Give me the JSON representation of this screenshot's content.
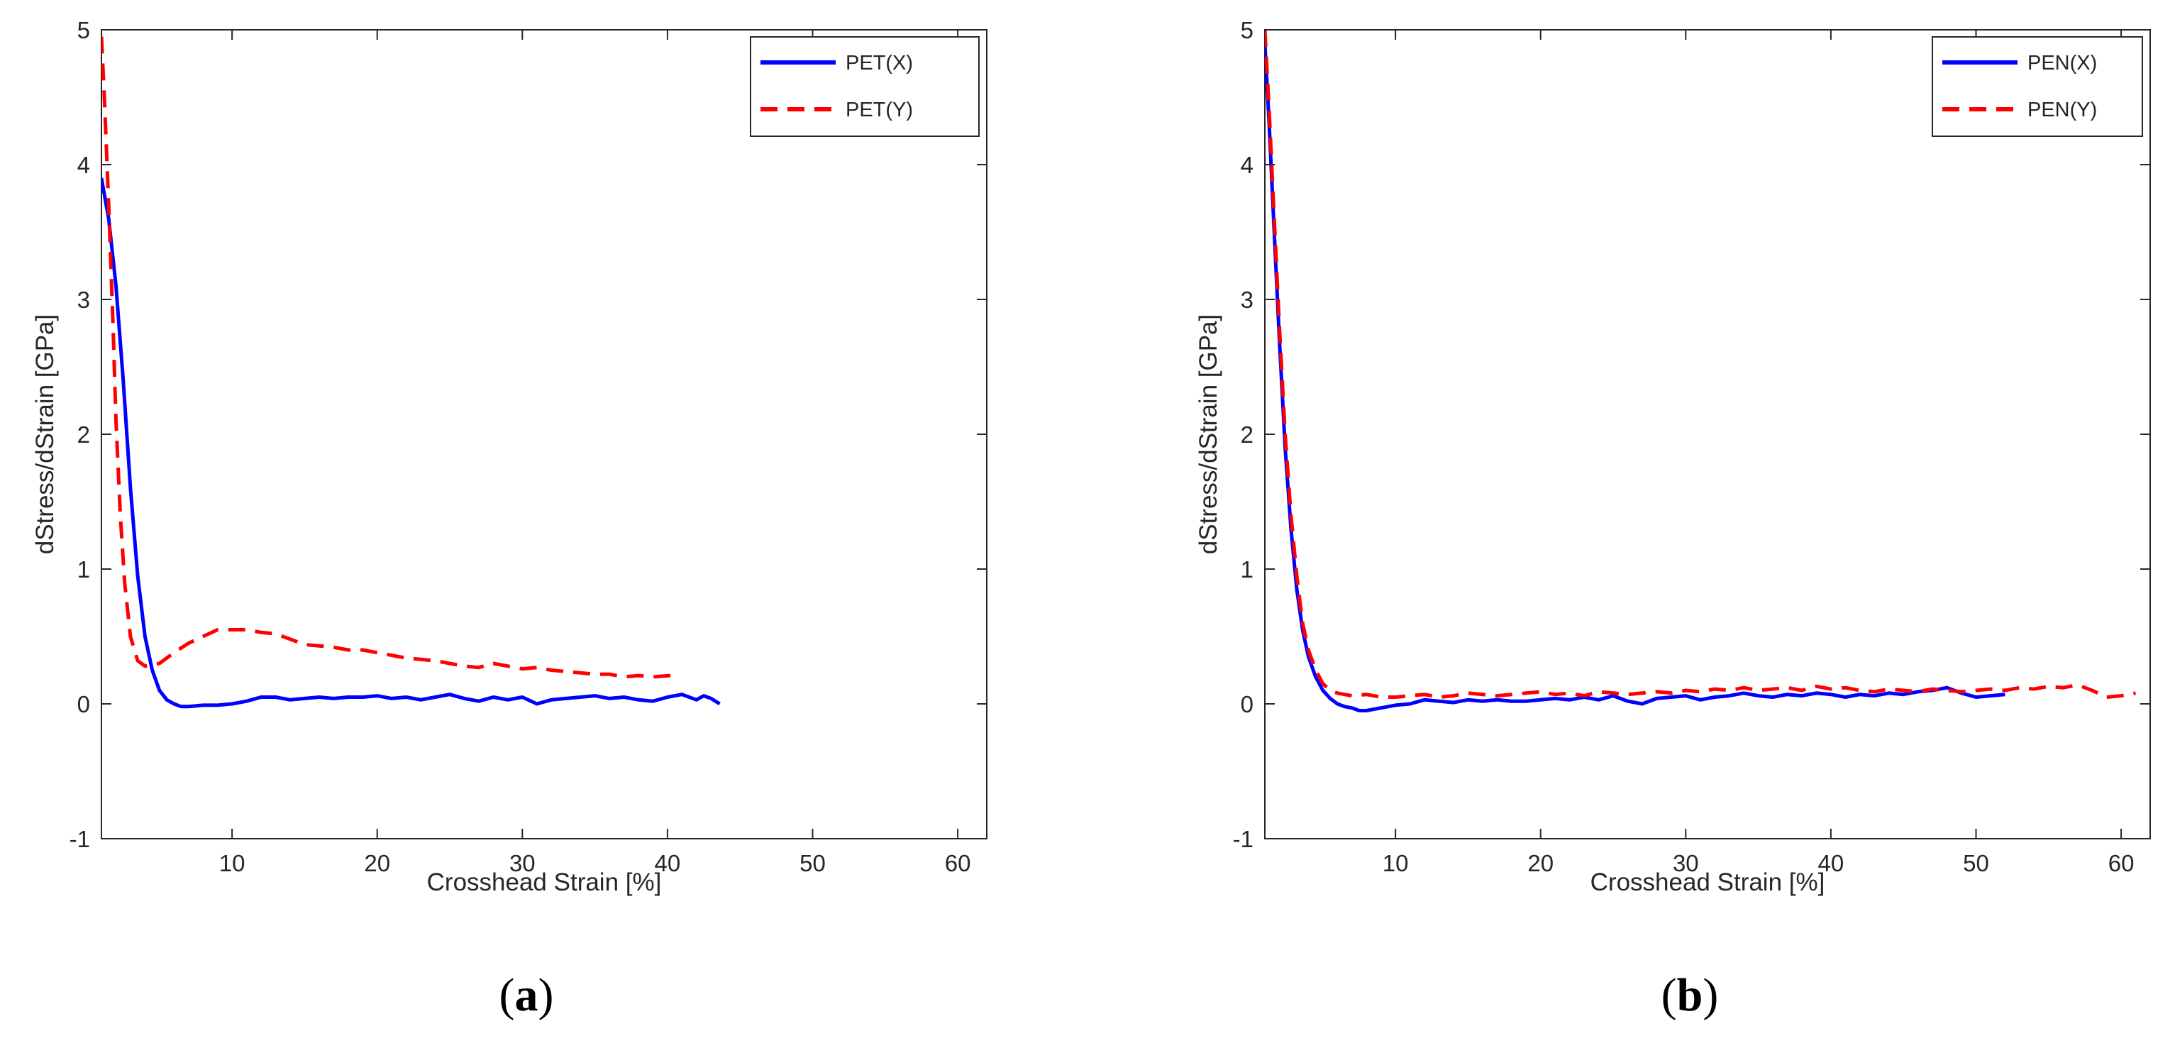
{
  "chart_data": [
    {
      "type": "line",
      "panel_label": {
        "open": "(",
        "letter": "a",
        "close": ")"
      },
      "title": "",
      "xlabel": "Crosshead Strain [%]",
      "ylabel": "dStress/dStrain [GPa]",
      "xlim": [
        1,
        62
      ],
      "ylim": [
        -1,
        5
      ],
      "xticks": [
        10,
        20,
        30,
        40,
        50,
        60
      ],
      "yticks": [
        -1,
        0,
        1,
        2,
        3,
        4,
        5
      ],
      "grid": false,
      "legend_position": "top-right",
      "series": [
        {
          "name": "PET(X)",
          "color": "#0000ff",
          "style": "solid",
          "x": [
            1.0,
            1.5,
            2.0,
            2.5,
            3.0,
            3.5,
            4.0,
            4.5,
            5.0,
            5.5,
            6.0,
            6.5,
            7.0,
            8.0,
            9.0,
            10.0,
            11.0,
            12.0,
            13.0,
            14.0,
            15.0,
            16.0,
            17.0,
            18.0,
            19.0,
            20.0,
            21.0,
            22.0,
            23.0,
            24.0,
            25.0,
            26.0,
            27.0,
            28.0,
            29.0,
            30.0,
            31.0,
            32.0,
            33.0,
            34.0,
            35.0,
            36.0,
            37.0,
            38.0,
            39.0,
            40.0,
            41.0,
            42.0,
            42.5,
            43.0,
            43.6
          ],
          "y": [
            3.9,
            3.6,
            3.1,
            2.4,
            1.6,
            0.95,
            0.5,
            0.25,
            0.1,
            0.03,
            0.0,
            -0.02,
            -0.02,
            -0.01,
            -0.01,
            0.0,
            0.02,
            0.05,
            0.05,
            0.03,
            0.04,
            0.05,
            0.04,
            0.05,
            0.05,
            0.06,
            0.04,
            0.05,
            0.03,
            0.05,
            0.07,
            0.04,
            0.02,
            0.05,
            0.03,
            0.05,
            0.0,
            0.03,
            0.04,
            0.05,
            0.06,
            0.04,
            0.05,
            0.03,
            0.02,
            0.05,
            0.07,
            0.03,
            0.06,
            0.04,
            0.0
          ]
        },
        {
          "name": "PET(Y)",
          "color": "#ff0000",
          "style": "dashed",
          "x": [
            1.0,
            1.2,
            1.5,
            1.8,
            2.0,
            2.3,
            2.6,
            3.0,
            3.5,
            4.0,
            5.0,
            6.0,
            7.0,
            8.0,
            9.0,
            10.0,
            11.0,
            12.0,
            13.0,
            14.0,
            15.0,
            16.0,
            17.0,
            18.0,
            19.0,
            20.0,
            21.0,
            22.0,
            23.0,
            24.0,
            25.0,
            26.0,
            27.0,
            28.0,
            29.0,
            30.0,
            31.0,
            32.0,
            33.0,
            34.0,
            35.0,
            36.0,
            37.0,
            38.0,
            39.0,
            40.2
          ],
          "y": [
            4.95,
            4.5,
            3.7,
            2.8,
            2.1,
            1.4,
            0.9,
            0.5,
            0.32,
            0.28,
            0.3,
            0.38,
            0.45,
            0.5,
            0.55,
            0.55,
            0.55,
            0.53,
            0.52,
            0.48,
            0.44,
            0.43,
            0.42,
            0.4,
            0.4,
            0.38,
            0.36,
            0.34,
            0.33,
            0.32,
            0.3,
            0.28,
            0.27,
            0.3,
            0.28,
            0.26,
            0.27,
            0.25,
            0.24,
            0.23,
            0.22,
            0.22,
            0.2,
            0.21,
            0.2,
            0.21
          ]
        }
      ]
    },
    {
      "type": "line",
      "panel_label": {
        "open": "(",
        "letter": "b",
        "close": ")"
      },
      "title": "",
      "xlabel": "Crosshead Strain [%]",
      "ylabel": "dStress/dStrain [GPa]",
      "xlim": [
        1,
        62
      ],
      "ylim": [
        -1,
        5
      ],
      "xticks": [
        10,
        20,
        30,
        40,
        50,
        60
      ],
      "yticks": [
        -1,
        0,
        1,
        2,
        3,
        4,
        5
      ],
      "grid": false,
      "legend_position": "top-right",
      "series": [
        {
          "name": "PEN(X)",
          "color": "#0000ff",
          "style": "solid",
          "x": [
            1.0,
            1.3,
            1.6,
            2.0,
            2.4,
            2.8,
            3.2,
            3.6,
            4.0,
            4.5,
            5.0,
            5.5,
            6.0,
            6.5,
            7.0,
            7.5,
            8.0,
            9.0,
            10.0,
            11.0,
            12.0,
            13.0,
            14.0,
            15.0,
            16.0,
            17.0,
            18.0,
            19.0,
            20.0,
            21.0,
            22.0,
            23.0,
            24.0,
            25.0,
            26.0,
            27.0,
            28.0,
            29.0,
            30.0,
            31.0,
            32.0,
            33.0,
            34.0,
            35.0,
            36.0,
            37.0,
            38.0,
            39.0,
            40.0,
            41.0,
            42.0,
            43.0,
            44.0,
            45.0,
            46.0,
            47.0,
            48.0,
            49.0,
            50.0,
            51.0,
            52.0
          ],
          "y": [
            4.9,
            4.3,
            3.6,
            2.7,
            1.9,
            1.3,
            0.85,
            0.55,
            0.35,
            0.2,
            0.1,
            0.04,
            0.0,
            -0.02,
            -0.03,
            -0.05,
            -0.05,
            -0.03,
            -0.01,
            0.0,
            0.03,
            0.02,
            0.01,
            0.03,
            0.02,
            0.03,
            0.02,
            0.02,
            0.03,
            0.04,
            0.03,
            0.05,
            0.03,
            0.06,
            0.02,
            0.0,
            0.04,
            0.05,
            0.06,
            0.03,
            0.05,
            0.06,
            0.08,
            0.06,
            0.05,
            0.07,
            0.06,
            0.08,
            0.07,
            0.05,
            0.07,
            0.06,
            0.08,
            0.07,
            0.09,
            0.1,
            0.12,
            0.08,
            0.05,
            0.06,
            0.07
          ]
        },
        {
          "name": "PEN(Y)",
          "color": "#ff0000",
          "style": "dashed",
          "x": [
            1.0,
            1.3,
            1.6,
            2.0,
            2.4,
            2.8,
            3.2,
            3.6,
            4.0,
            4.5,
            5.0,
            5.5,
            6.0,
            7.0,
            8.0,
            9.0,
            10.0,
            11.0,
            12.0,
            13.0,
            14.0,
            15.0,
            16.0,
            17.0,
            18.0,
            19.0,
            20.0,
            21.0,
            22.0,
            23.0,
            24.0,
            25.0,
            26.0,
            27.0,
            28.0,
            29.0,
            30.0,
            31.0,
            32.0,
            33.0,
            34.0,
            35.0,
            36.0,
            37.0,
            38.0,
            39.0,
            40.0,
            41.0,
            42.0,
            43.0,
            44.0,
            45.0,
            46.0,
            47.0,
            48.0,
            49.0,
            50.0,
            51.0,
            52.0,
            53.0,
            54.0,
            55.0,
            56.0,
            57.0,
            58.0,
            59.0,
            60.0,
            61.0
          ],
          "y": [
            5.0,
            4.4,
            3.7,
            2.8,
            2.0,
            1.4,
            0.95,
            0.6,
            0.4,
            0.25,
            0.15,
            0.1,
            0.08,
            0.06,
            0.07,
            0.05,
            0.05,
            0.06,
            0.07,
            0.05,
            0.06,
            0.08,
            0.07,
            0.06,
            0.07,
            0.08,
            0.09,
            0.07,
            0.08,
            0.06,
            0.09,
            0.08,
            0.07,
            0.08,
            0.09,
            0.08,
            0.1,
            0.09,
            0.11,
            0.1,
            0.12,
            0.1,
            0.11,
            0.12,
            0.1,
            0.13,
            0.11,
            0.12,
            0.1,
            0.09,
            0.11,
            0.1,
            0.09,
            0.11,
            0.1,
            0.09,
            0.1,
            0.11,
            0.1,
            0.12,
            0.11,
            0.13,
            0.12,
            0.14,
            0.1,
            0.05,
            0.06,
            0.08
          ]
        }
      ]
    }
  ]
}
